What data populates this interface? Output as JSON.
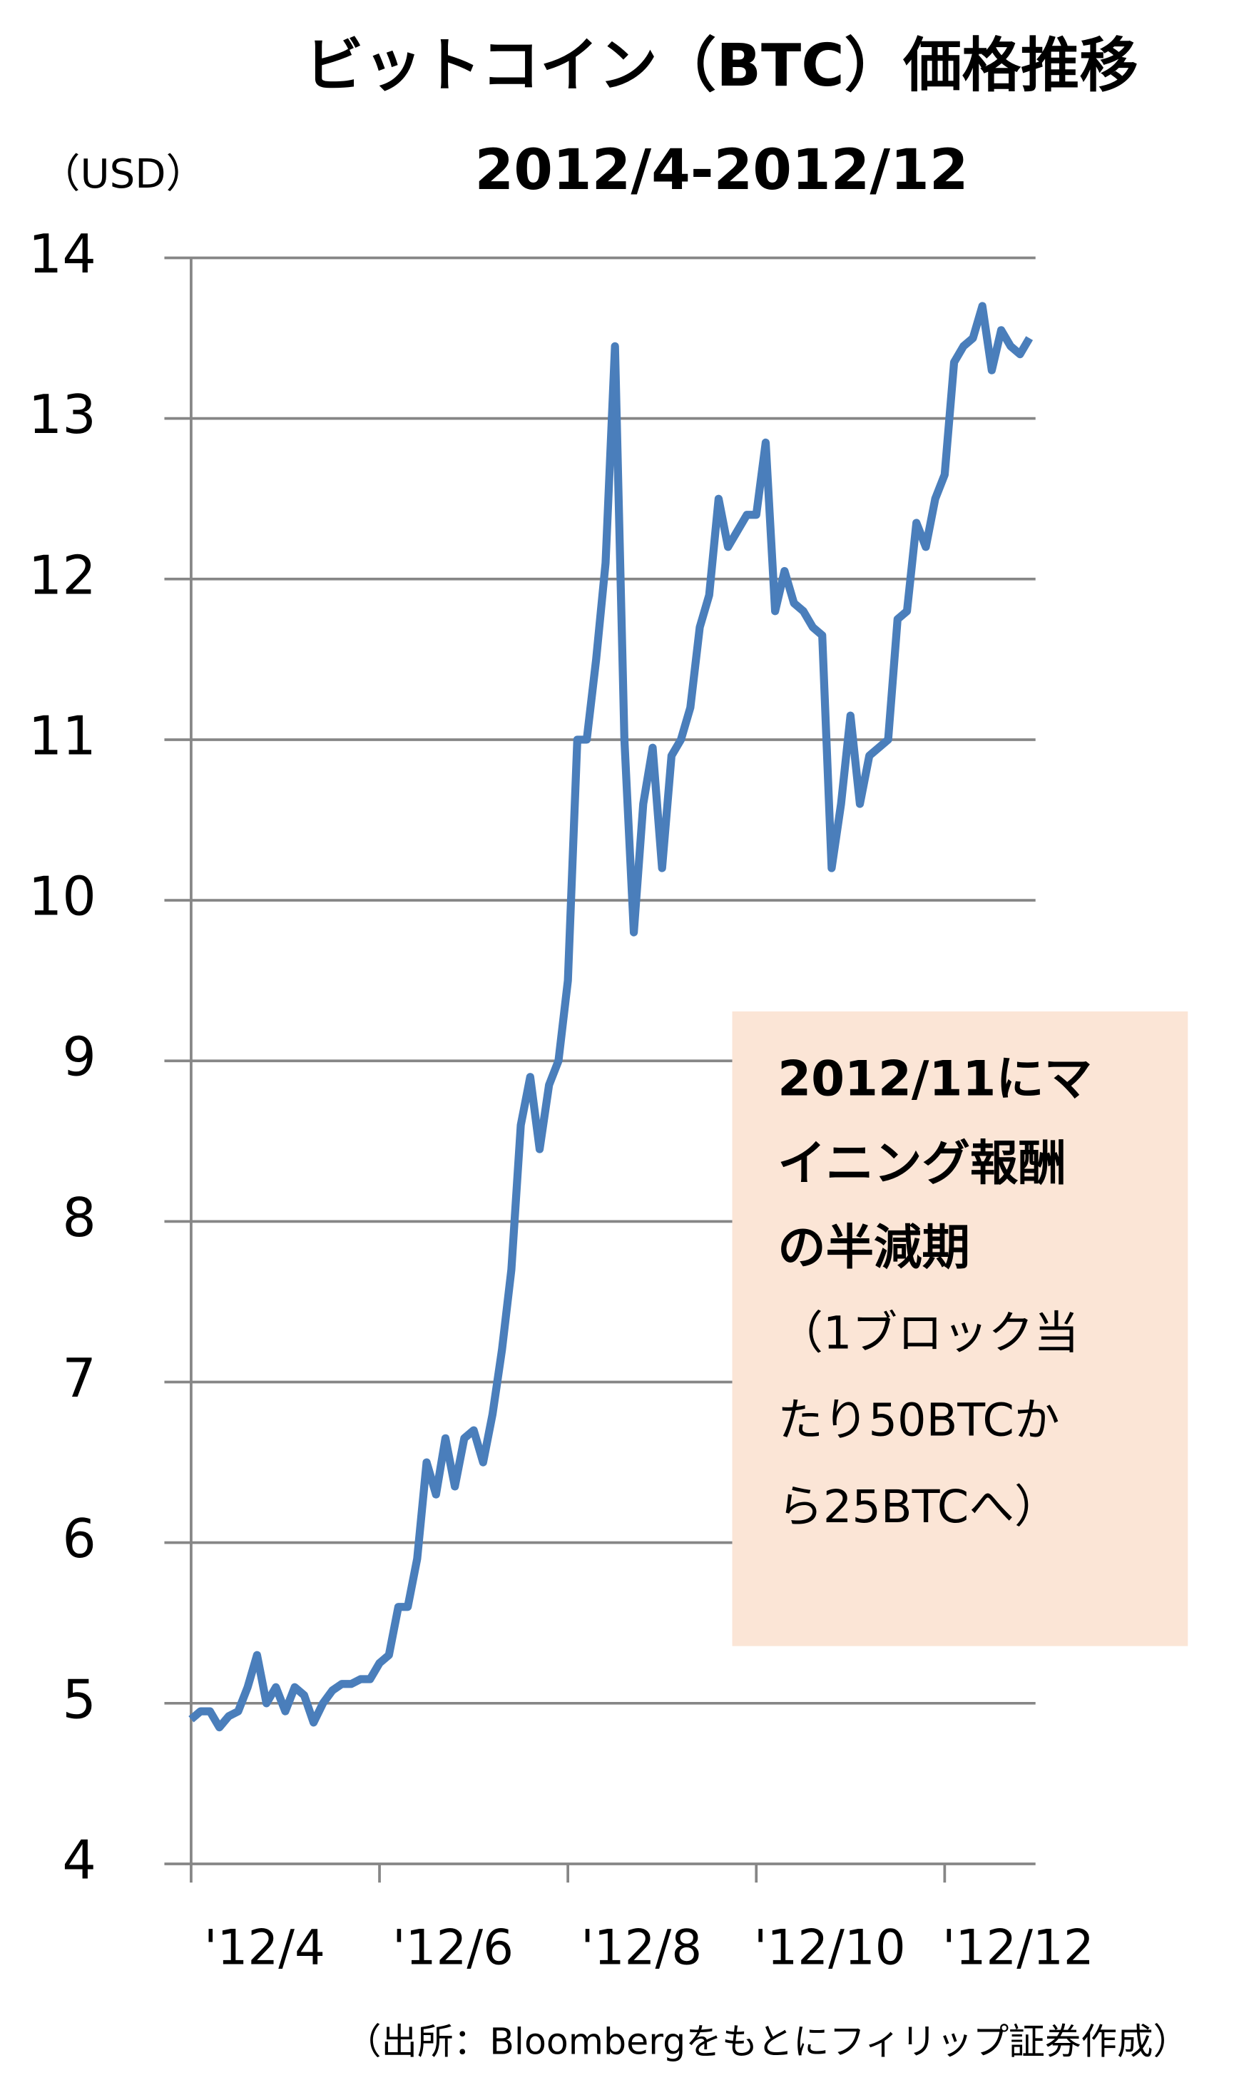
{
  "chart_data": {
    "type": "line",
    "title": "ビットコイン（BTC）価格推移",
    "subtitle": "2012/4-2012/12",
    "y_axis_label": "（USD）",
    "source": "（出所：Bloombergをもとにフィリップ証券作成）",
    "annotation": {
      "bold_lines": [
        "2012/11にマ",
        "イニング報酬",
        "の半減期"
      ],
      "lines": [
        "（1ブロック当",
        "たり50BTCか",
        "ら25BTCへ）"
      ],
      "color": "#fbe5d6"
    },
    "color": "#4a7ebb",
    "grid": true,
    "ylim": [
      4,
      14
    ],
    "yticks": [
      4,
      5,
      6,
      7,
      8,
      9,
      10,
      11,
      12,
      13,
      14
    ],
    "categories": [
      "'12/4",
      null,
      null,
      null,
      null,
      null,
      null,
      null,
      null,
      null,
      null,
      null,
      null,
      null,
      null,
      null,
      null,
      null,
      null,
      null,
      "'12/6",
      null,
      null,
      null,
      null,
      null,
      null,
      null,
      null,
      null,
      null,
      null,
      null,
      null,
      null,
      null,
      null,
      null,
      null,
      null,
      "'12/8",
      null,
      null,
      null,
      null,
      null,
      null,
      null,
      null,
      null,
      null,
      null,
      null,
      null,
      null,
      null,
      null,
      null,
      null,
      null,
      "'12/10",
      null,
      null,
      null,
      null,
      null,
      null,
      null,
      null,
      null,
      null,
      null,
      null,
      null,
      null,
      null,
      null,
      null,
      null,
      null,
      "'12/12",
      null,
      null,
      null,
      null,
      null,
      null,
      null,
      null,
      null
    ],
    "values": [
      4.9,
      4.95,
      4.95,
      4.85,
      4.92,
      4.95,
      5.1,
      5.3,
      5.0,
      5.1,
      4.95,
      5.1,
      5.05,
      4.88,
      5.0,
      5.08,
      5.12,
      5.12,
      5.15,
      5.15,
      5.25,
      5.3,
      5.6,
      5.6,
      5.9,
      6.5,
      6.3,
      6.65,
      6.35,
      6.65,
      6.7,
      6.5,
      6.8,
      7.2,
      7.7,
      8.6,
      8.9,
      8.45,
      8.85,
      9.0,
      9.5,
      11.0,
      11.0,
      11.5,
      12.1,
      13.45,
      11.0,
      9.8,
      10.6,
      10.95,
      10.2,
      10.9,
      11.0,
      11.2,
      11.7,
      11.9,
      12.5,
      12.2,
      12.3,
      12.4,
      12.4,
      12.85,
      11.8,
      12.05,
      11.85,
      11.8,
      11.7,
      11.65,
      10.2,
      10.6,
      11.15,
      10.6,
      10.9,
      10.95,
      11.0,
      11.75,
      11.8,
      12.35,
      12.2,
      12.5,
      12.65,
      13.35,
      13.45,
      13.5,
      13.7,
      13.3,
      13.55,
      13.45,
      13.4,
      13.5
    ]
  }
}
